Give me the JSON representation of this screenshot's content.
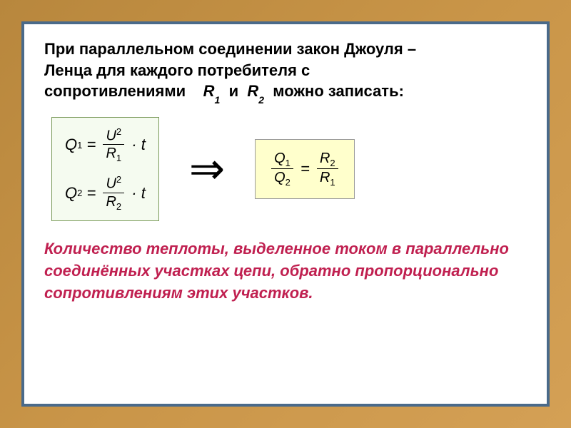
{
  "slide": {
    "background_gradient": [
      "#b8873d",
      "#c99548",
      "#d4a055"
    ],
    "card_bg": "#ffffff",
    "card_border": "#4a6a8a",
    "intro": {
      "line1": "При параллельном соединении закон Джоуля –",
      "line2_a": "Ленца для каждого потребителя с",
      "line3_a": "сопротивлениями",
      "R1": "R",
      "R1_sub": "1",
      "and": "и",
      "R2": "R",
      "R2_sub": "2",
      "line3_b": "можно записать:",
      "text_color": "#000000",
      "fontsize": 22
    },
    "formulas": {
      "box_left": {
        "bg": "#f5fbf0",
        "border": "#7a9a5a",
        "eq1": {
          "Q": "Q",
          "Qsub": "1",
          "U": "U",
          "Usup": "2",
          "R": "R",
          "Rsub": "1",
          "t": "t"
        },
        "eq2": {
          "Q": "Q",
          "Qsub": "2",
          "U": "U",
          "Usup": "2",
          "R": "R",
          "Rsub": "2",
          "t": "t"
        }
      },
      "arrow": "⇒",
      "box_right": {
        "bg": "#ffffcc",
        "border": "#999999",
        "ratio": {
          "Q1": "Q",
          "Q1sub": "1",
          "Q2": "Q",
          "Q2sub": "2",
          "R2": "R",
          "R2sub": "2",
          "R1": "R",
          "R1sub": "1"
        }
      }
    },
    "conclusion": {
      "text": "Количество теплоты, выделенное током в параллельно соединённых участках цепи, обратно пропорционально сопротивлениям этих участков.",
      "color": "#c02050",
      "fontsize": 22
    }
  }
}
